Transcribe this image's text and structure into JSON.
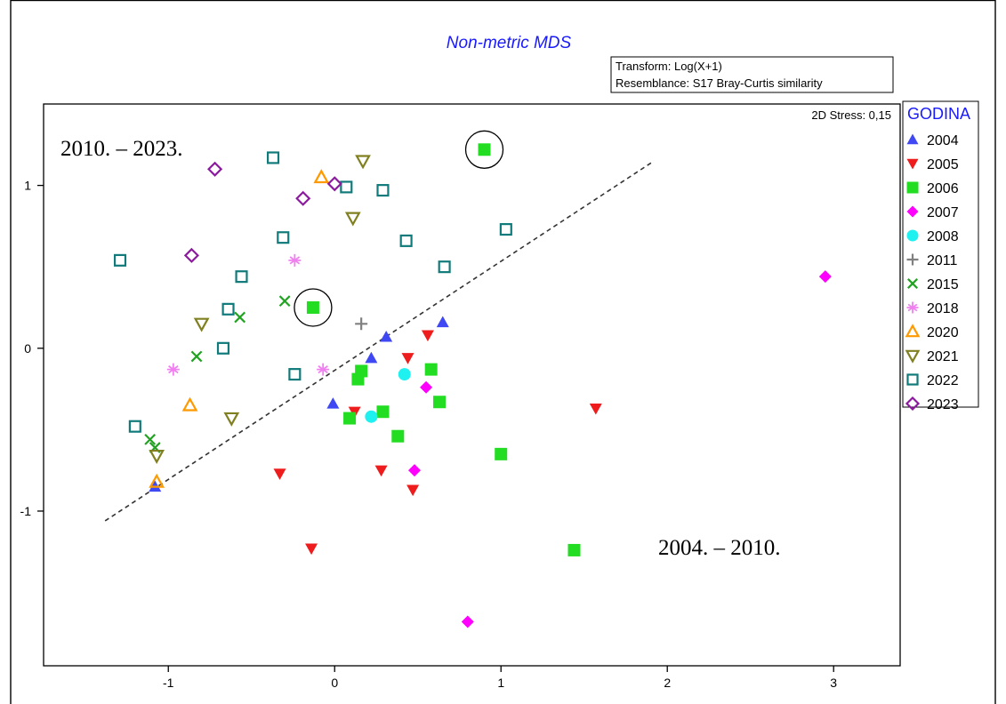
{
  "chart_data": {
    "type": "scatter",
    "title": "Non-metric MDS",
    "info": {
      "transform": "Transform: Log(X+1)",
      "resemblance": "Resemblance: S17 Bray-Curtis similarity"
    },
    "stress": "2D Stress: 0,15",
    "legend_title": "GODINA",
    "legend_position": "right",
    "xlim": [
      -1.75,
      3.4
    ],
    "ylim": [
      -1.95,
      1.5
    ],
    "xticks": [
      -1,
      0,
      1,
      2,
      3
    ],
    "yticks": [
      -1,
      0,
      1
    ],
    "grid": false,
    "annotations": [
      {
        "text": "2010. – 2023.",
        "x": -1.68,
        "y": 1.22
      },
      {
        "text": "2004. – 2010.",
        "x": 1.99,
        "y": -1.29
      }
    ],
    "divider_line": {
      "x": [
        -1.38,
        1.92
      ],
      "y": [
        -1.06,
        1.15
      ]
    },
    "highlight_circles": [
      {
        "x": 0.9,
        "y": 1.22
      },
      {
        "x": -0.13,
        "y": 0.25
      }
    ],
    "series": [
      {
        "name": "2004",
        "marker": "triangle-up",
        "color": "#3f48f2",
        "filled": true,
        "points": [
          [
            -1.08,
            -0.85
          ],
          [
            -0.01,
            -0.34
          ],
          [
            0.22,
            -0.06
          ],
          [
            0.31,
            0.07
          ],
          [
            0.65,
            0.16
          ]
        ]
      },
      {
        "name": "2005",
        "marker": "triangle-down",
        "color": "#ee1c1c",
        "filled": true,
        "points": [
          [
            -0.33,
            -0.77
          ],
          [
            -0.14,
            -1.23
          ],
          [
            0.12,
            -0.39
          ],
          [
            0.28,
            -0.75
          ],
          [
            0.44,
            -0.06
          ],
          [
            0.47,
            -0.87
          ],
          [
            0.56,
            0.08
          ],
          [
            1.57,
            -0.37
          ]
        ]
      },
      {
        "name": "2006",
        "marker": "square",
        "color": "#22dd22",
        "filled": true,
        "points": [
          [
            0.9,
            1.22
          ],
          [
            -0.13,
            0.25
          ],
          [
            0.09,
            -0.43
          ],
          [
            0.14,
            -0.19
          ],
          [
            0.16,
            -0.14
          ],
          [
            0.29,
            -0.39
          ],
          [
            0.38,
            -0.54
          ],
          [
            0.58,
            -0.13
          ],
          [
            0.63,
            -0.33
          ],
          [
            1.0,
            -0.65
          ],
          [
            1.44,
            -1.24
          ]
        ]
      },
      {
        "name": "2007",
        "marker": "diamond",
        "color": "#ff00ff",
        "filled": true,
        "points": [
          [
            0.55,
            -0.24
          ],
          [
            0.48,
            -0.75
          ],
          [
            0.8,
            -1.68
          ],
          [
            2.95,
            0.44
          ]
        ]
      },
      {
        "name": "2008",
        "marker": "circle",
        "color": "#1ff0f0",
        "filled": true,
        "points": [
          [
            0.42,
            -0.16
          ],
          [
            0.22,
            -0.42
          ]
        ]
      },
      {
        "name": "2011",
        "marker": "plus",
        "color": "#808080",
        "filled": false,
        "points": [
          [
            0.16,
            0.15
          ]
        ]
      },
      {
        "name": "2015",
        "marker": "x",
        "color": "#21a321",
        "filled": false,
        "points": [
          [
            -1.11,
            -0.56
          ],
          [
            -1.08,
            -0.61
          ],
          [
            -0.83,
            -0.05
          ],
          [
            -0.57,
            0.19
          ],
          [
            -0.3,
            0.29
          ]
        ]
      },
      {
        "name": "2018",
        "marker": "asterisk",
        "color": "#f080f0",
        "filled": false,
        "points": [
          [
            -0.97,
            -0.13
          ],
          [
            -0.24,
            0.54
          ],
          [
            -0.07,
            -0.13
          ]
        ]
      },
      {
        "name": "2020",
        "marker": "triangle-up",
        "color": "#ff9900",
        "filled": false,
        "points": [
          [
            -1.07,
            -0.82
          ],
          [
            -0.87,
            -0.35
          ],
          [
            -0.08,
            1.05
          ]
        ]
      },
      {
        "name": "2021",
        "marker": "triangle-down",
        "color": "#808020",
        "filled": false,
        "points": [
          [
            -1.07,
            -0.66
          ],
          [
            -0.8,
            0.15
          ],
          [
            -0.62,
            -0.43
          ],
          [
            0.11,
            0.8
          ],
          [
            0.17,
            1.15
          ]
        ]
      },
      {
        "name": "2022",
        "marker": "square",
        "color": "#117a7a",
        "filled": false,
        "points": [
          [
            -1.29,
            0.54
          ],
          [
            -1.2,
            -0.48
          ],
          [
            -0.67,
            0.0
          ],
          [
            -0.64,
            0.24
          ],
          [
            -0.56,
            0.44
          ],
          [
            -0.37,
            1.17
          ],
          [
            -0.31,
            0.68
          ],
          [
            -0.24,
            -0.16
          ],
          [
            0.07,
            0.99
          ],
          [
            0.29,
            0.97
          ],
          [
            0.43,
            0.66
          ],
          [
            0.66,
            0.5
          ],
          [
            1.03,
            0.73
          ]
        ]
      },
      {
        "name": "2023",
        "marker": "diamond",
        "color": "#8b1a9e",
        "filled": false,
        "points": [
          [
            -0.86,
            0.57
          ],
          [
            -0.72,
            1.1
          ],
          [
            -0.19,
            0.92
          ],
          [
            0.0,
            1.01
          ]
        ]
      }
    ]
  }
}
